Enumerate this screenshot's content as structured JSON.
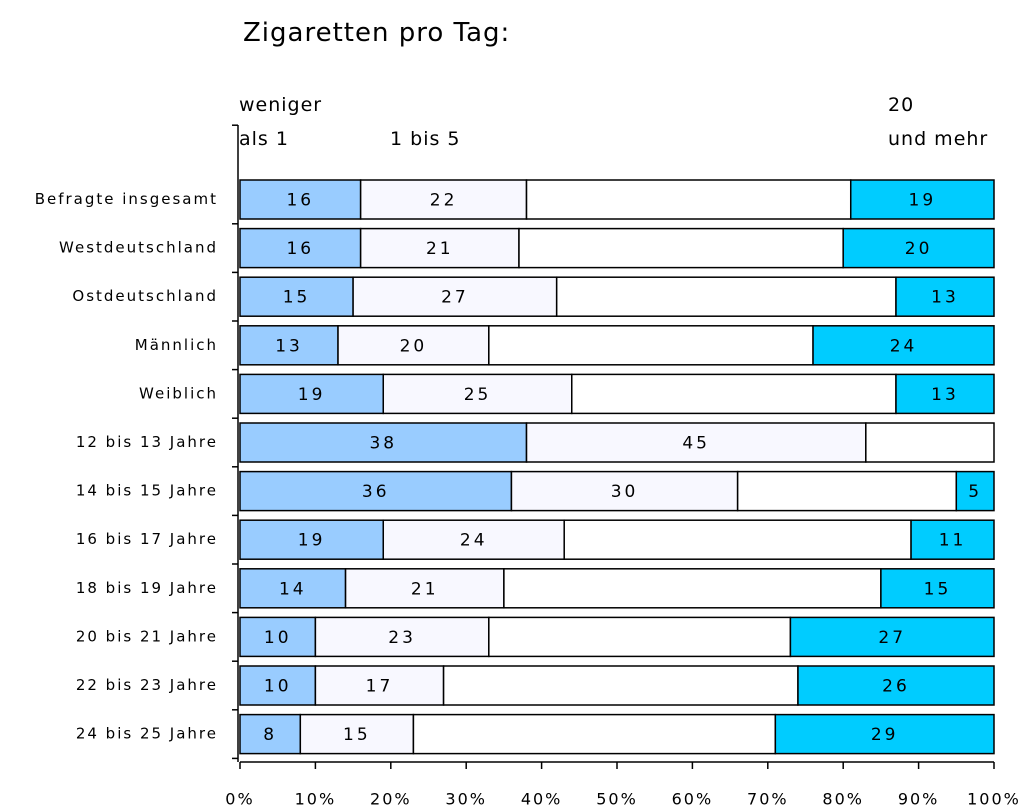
{
  "chart_data": {
    "type": "stacked-bar-horizontal",
    "title": "Zigaretten pro Tag:",
    "categories": [
      "Befragte insgesamt",
      "Westdeutschland",
      "Ostdeutschland",
      "Männlich",
      "Weiblich",
      "12 bis 13 Jahre",
      "14 bis 15 Jahre",
      "16 bis 17 Jahre",
      "18 bis 19 Jahre",
      "20 bis 21 Jahre",
      "22 bis 23 Jahre",
      "24 bis 25 Jahre"
    ],
    "series": [
      {
        "name": "weniger\nals 1",
        "color": "#99ccff",
        "labeled": true,
        "values": [
          16,
          16,
          15,
          13,
          19,
          38,
          36,
          19,
          14,
          10,
          10,
          8
        ]
      },
      {
        "name": "1 bis 5",
        "color": "#f8f8ff",
        "labeled": true,
        "values": [
          22,
          21,
          27,
          20,
          25,
          45,
          30,
          24,
          21,
          23,
          17,
          15
        ]
      },
      {
        "color": "#ffffff",
        "labeled": false,
        "values": [
          43,
          43,
          45,
          43,
          43,
          17,
          29,
          46,
          50,
          40,
          47,
          48
        ]
      },
      {
        "name": "20\nund mehr",
        "color": "#00ccff",
        "labeled": true,
        "values": [
          19,
          20,
          13,
          24,
          13,
          0,
          5,
          11,
          15,
          27,
          26,
          29
        ]
      }
    ],
    "xlim": [
      0,
      100
    ],
    "xticks": [
      {
        "value": 0,
        "label": "0%"
      },
      {
        "value": 10,
        "label": "10%"
      },
      {
        "value": 20,
        "label": "20%"
      },
      {
        "value": 30,
        "label": "30%"
      },
      {
        "value": 40,
        "label": "40%"
      },
      {
        "value": 50,
        "label": "50%"
      },
      {
        "value": 60,
        "label": "60%"
      },
      {
        "value": 70,
        "label": "70%"
      },
      {
        "value": 80,
        "label": "80%"
      },
      {
        "value": 90,
        "label": "90%"
      },
      {
        "value": 100,
        "label": "100%"
      }
    ]
  }
}
